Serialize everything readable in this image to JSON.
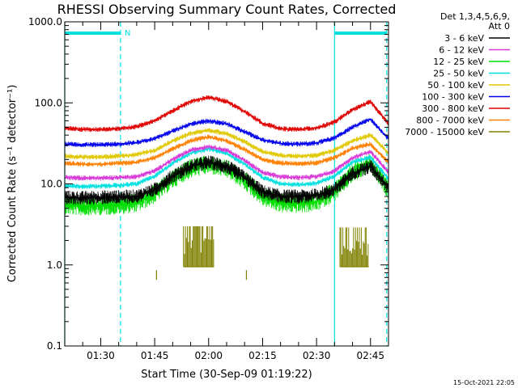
{
  "chart_data": {
    "type": "line",
    "title": "RHESSI Observing Summary Count Rates, Corrected",
    "xlabel": "Start Time (30-Sep-09 01:19:22)",
    "ylabel": "Corrected Count Rate (s⁻¹ detector⁻¹)",
    "yscale": "log",
    "ylim": [
      0.1,
      1000.0
    ],
    "y_ticks": [
      {
        "value": 0.1,
        "label": "0.1"
      },
      {
        "value": 1.0,
        "label": "1.0"
      },
      {
        "value": 10.0,
        "label": "10.0"
      },
      {
        "value": 100.0,
        "label": "100.0"
      },
      {
        "value": 1000.0,
        "label": "1000.0"
      }
    ],
    "xlim_minutes": [
      80.0,
      170.0
    ],
    "x_ticks": [
      {
        "minutes": 90,
        "label": "01:30"
      },
      {
        "minutes": 105,
        "label": "01:45"
      },
      {
        "minutes": 120,
        "label": "02:00"
      },
      {
        "minutes": 135,
        "label": "02:15"
      },
      {
        "minutes": 150,
        "label": "02:30"
      },
      {
        "minutes": 165,
        "label": "02:45"
      }
    ],
    "grid": false,
    "legend_position": "right",
    "legend_header": [
      "Det 1,3,4,5,6,9,",
      "Att 0"
    ],
    "series": [
      {
        "name": "3 - 6 keV",
        "color": "#000000",
        "x": [
          80,
          85,
          90,
          95,
          100,
          105,
          110,
          115,
          120,
          125,
          130,
          135,
          140,
          145,
          150,
          155,
          160,
          165,
          170
        ],
        "values": [
          6.8,
          6.7,
          6.8,
          6.9,
          7.0,
          8.5,
          12.5,
          16.5,
          18.5,
          16.5,
          12.0,
          8.0,
          7.0,
          7.0,
          7.2,
          8.5,
          13.5,
          16.5,
          9.0
        ]
      },
      {
        "name": "6 - 12 keV",
        "color": "#d83ad8",
        "x": [
          80,
          85,
          90,
          95,
          100,
          105,
          110,
          115,
          120,
          125,
          130,
          135,
          140,
          145,
          150,
          155,
          160,
          165,
          170
        ],
        "values": [
          12.0,
          11.8,
          11.8,
          12.0,
          12.3,
          14.5,
          20.0,
          26.0,
          29.0,
          26.0,
          19.5,
          13.8,
          12.2,
          12.0,
          12.3,
          14.5,
          21.0,
          25.0,
          14.0
        ]
      },
      {
        "name": "12 - 25 keV",
        "color": "#00dd00",
        "x": [
          80,
          85,
          90,
          95,
          100,
          105,
          110,
          115,
          120,
          125,
          130,
          135,
          140,
          145,
          150,
          155,
          160,
          165,
          170
        ],
        "values": [
          5.5,
          5.3,
          5.4,
          5.5,
          5.8,
          7.5,
          11.5,
          15.5,
          17.5,
          15.5,
          11.0,
          7.0,
          5.8,
          5.7,
          6.0,
          8.0,
          13.5,
          18.0,
          8.5
        ]
      },
      {
        "name": "25 - 50 keV",
        "color": "#00e0e0",
        "x": [
          80,
          85,
          90,
          95,
          100,
          105,
          110,
          115,
          120,
          125,
          130,
          135,
          140,
          145,
          150,
          155,
          160,
          165,
          170
        ],
        "values": [
          9.5,
          9.3,
          9.4,
          9.6,
          10.0,
          12.5,
          18.0,
          24.0,
          27.0,
          24.0,
          17.5,
          12.0,
          10.0,
          9.8,
          10.2,
          12.5,
          18.5,
          21.5,
          11.5
        ]
      },
      {
        "name": "50 - 100 keV",
        "color": "#e0c800",
        "x": [
          80,
          85,
          90,
          95,
          100,
          105,
          110,
          115,
          120,
          125,
          130,
          135,
          140,
          145,
          150,
          155,
          160,
          165,
          170
        ],
        "values": [
          22.0,
          21.5,
          21.5,
          22.0,
          23.0,
          26.0,
          34.0,
          42.0,
          46.0,
          42.0,
          33.0,
          25.0,
          22.5,
          22.0,
          22.5,
          26.0,
          34.0,
          40.0,
          24.0
        ]
      },
      {
        "name": "100 - 300 keV",
        "color": "#0000ee",
        "x": [
          80,
          85,
          90,
          95,
          100,
          105,
          110,
          115,
          120,
          125,
          130,
          135,
          140,
          145,
          150,
          155,
          160,
          165,
          170
        ],
        "values": [
          31.0,
          30.5,
          30.5,
          31.0,
          32.5,
          36.0,
          45.0,
          55.0,
          60.0,
          55.0,
          44.0,
          35.0,
          31.5,
          31.0,
          32.0,
          37.0,
          50.0,
          63.0,
          36.0
        ]
      },
      {
        "name": "300 - 800 keV",
        "color": "#e00000",
        "x": [
          80,
          85,
          90,
          95,
          100,
          105,
          110,
          115,
          120,
          125,
          130,
          135,
          140,
          145,
          150,
          155,
          160,
          165,
          170
        ],
        "values": [
          49.0,
          47.0,
          47.0,
          48.0,
          51.0,
          60.0,
          80.0,
          104.0,
          117.0,
          104.0,
          78.0,
          56.0,
          48.0,
          47.0,
          49.0,
          58.0,
          82.0,
          104.0,
          55.0
        ]
      },
      {
        "name": "800 - 7000 keV",
        "color": "#ff8000",
        "x": [
          80,
          85,
          90,
          95,
          100,
          105,
          110,
          115,
          120,
          125,
          130,
          135,
          140,
          145,
          150,
          155,
          160,
          165,
          170
        ],
        "values": [
          18.0,
          17.5,
          17.5,
          18.0,
          18.5,
          21.0,
          27.0,
          34.0,
          38.0,
          34.0,
          26.5,
          20.0,
          18.0,
          17.8,
          18.2,
          21.0,
          27.5,
          31.0,
          18.5
        ]
      },
      {
        "name": "7000 - 15000 keV",
        "color": "#808000",
        "segments": [
          {
            "x": [
              113,
              113,
              121.5,
              121.5
            ],
            "values": [
              0.95,
              3.0,
              3.0,
              0.95
            ]
          },
          {
            "x": [
              156.5,
              156.5,
              164.5,
              164.5
            ],
            "values": [
              0.95,
              2.9,
              2.9,
              0.95
            ]
          }
        ],
        "points": [
          {
            "x": 105.5,
            "value": 0.75
          },
          {
            "x": 130.5,
            "value": 0.75
          }
        ]
      }
    ],
    "annotations": {
      "saa_periods": [
        {
          "start": 80.0,
          "end": 95.5
        },
        {
          "start": 155.0,
          "end": 169.5
        }
      ],
      "night_boundaries_solid": [
        80.0,
        155.0
      ],
      "night_boundaries_dashed": [
        95.5,
        169.5
      ],
      "flag_label": "N",
      "timestamp": "15-Oct-2021 22:05"
    }
  }
}
